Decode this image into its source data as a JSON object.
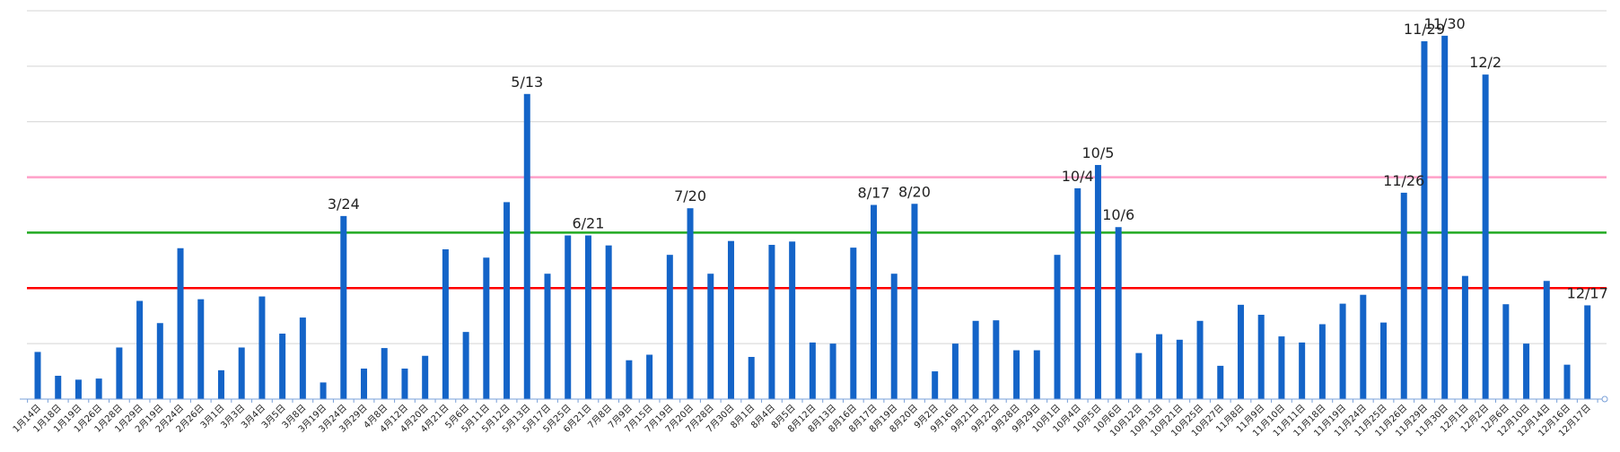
{
  "chart_data": {
    "type": "bar",
    "title": "",
    "xlabel": "",
    "ylabel": "",
    "ylim": [
      0,
      7
    ],
    "grid": true,
    "categories": [
      "1月14日",
      "1月18日",
      "1月19日",
      "1月26日",
      "1月28日",
      "1月29日",
      "2月19日",
      "2月24日",
      "2月26日",
      "3月1日",
      "3月3日",
      "3月4日",
      "3月5日",
      "3月8日",
      "3月19日",
      "3月24日",
      "3月29日",
      "4月8日",
      "4月12日",
      "4月20日",
      "4月21日",
      "5月6日",
      "5月11日",
      "5月12日",
      "5月13日",
      "5月17日",
      "5月25日",
      "6月21日",
      "7月8日",
      "7月9日",
      "7月15日",
      "7月19日",
      "7月20日",
      "7月28日",
      "7月30日",
      "8月1日",
      "8月4日",
      "8月5日",
      "8月12日",
      "8月13日",
      "8月16日",
      "8月17日",
      "8月19日",
      "8月20日",
      "9月2日",
      "9月16日",
      "9月21日",
      "9月22日",
      "9月28日",
      "9月29日",
      "10月1日",
      "10月4日",
      "10月5日",
      "10月6日",
      "10月12日",
      "10月13日",
      "10月21日",
      "10月25日",
      "10月27日",
      "11月8日",
      "11月9日",
      "11月10日",
      "11月11日",
      "11月18日",
      "11月19日",
      "11月24日",
      "11月25日",
      "11月26日",
      "11月29日",
      "11月30日",
      "12月1日",
      "12月2日",
      "12月6日",
      "12月10日",
      "12月14日",
      "12月16日",
      "12月17日"
    ],
    "values": [
      0.85,
      0.42,
      0.35,
      0.37,
      0.93,
      1.77,
      1.37,
      2.72,
      1.8,
      0.52,
      0.93,
      1.85,
      1.18,
      1.47,
      0.3,
      3.3,
      0.55,
      0.92,
      0.55,
      0.78,
      2.7,
      1.21,
      2.55,
      3.55,
      5.5,
      2.26,
      2.95,
      2.95,
      2.77,
      0.7,
      0.8,
      2.6,
      3.44,
      2.26,
      2.85,
      0.76,
      2.78,
      2.84,
      1.02,
      1.0,
      2.73,
      3.5,
      2.26,
      3.52,
      0.5,
      1.0,
      1.41,
      1.42,
      0.88,
      0.88,
      2.6,
      3.8,
      4.22,
      3.1,
      0.83,
      1.17,
      1.07,
      1.41,
      0.6,
      1.7,
      1.52,
      1.13,
      1.02,
      1.35,
      1.72,
      1.88,
      1.38,
      3.72,
      6.45,
      6.55,
      2.22,
      5.85,
      1.71,
      1.0,
      2.13,
      0.62,
      1.69
    ],
    "series": [
      {
        "values": [
          0.85,
          0.42,
          0.35,
          0.37,
          0.93,
          1.77,
          1.37,
          2.72,
          1.8,
          0.52,
          0.93,
          1.85,
          1.18,
          1.47,
          0.3,
          3.3,
          0.55,
          0.92,
          0.55,
          0.78,
          2.7,
          1.21,
          2.55,
          3.55,
          5.5,
          2.26,
          2.95,
          2.95,
          2.77,
          0.7,
          0.8,
          2.6,
          3.44,
          2.26,
          2.85,
          0.76,
          2.78,
          2.84,
          1.02,
          1.0,
          2.73,
          3.5,
          2.26,
          3.52,
          0.5,
          1.0,
          1.41,
          1.42,
          0.88,
          0.88,
          2.6,
          3.8,
          4.22,
          3.1,
          0.83,
          1.17,
          1.07,
          1.41,
          0.6,
          1.7,
          1.52,
          1.13,
          1.02,
          1.35,
          1.72,
          1.88,
          1.38,
          3.72,
          6.45,
          6.55,
          2.22,
          5.85,
          1.71,
          1.0,
          2.13,
          0.62,
          1.69
        ]
      }
    ],
    "annotations": [
      {
        "category_index": 15,
        "text": "3/24"
      },
      {
        "category_index": 24,
        "text": "5/13"
      },
      {
        "category_index": 27,
        "text": "6/21"
      },
      {
        "category_index": 32,
        "text": "7/20"
      },
      {
        "category_index": 41,
        "text": "8/17"
      },
      {
        "category_index": 43,
        "text": "8/20"
      },
      {
        "category_index": 51,
        "text": "10/4"
      },
      {
        "category_index": 52,
        "text": "10/5"
      },
      {
        "category_index": 53,
        "text": "10/6"
      },
      {
        "category_index": 67,
        "text": "11/26"
      },
      {
        "category_index": 68,
        "text": "11/29"
      },
      {
        "category_index": 69,
        "text": "11/30"
      },
      {
        "category_index": 71,
        "text": "12/2"
      },
      {
        "category_index": 76,
        "text": "12/17"
      }
    ],
    "reference_lines": [
      {
        "value": 2.0,
        "color": "#ff0000"
      },
      {
        "value": 3.0,
        "color": "#22aa22"
      },
      {
        "value": 4.0,
        "color": "#ffa0c8"
      }
    ],
    "colors": {
      "bar": "#1464c8",
      "grid": "#d4d4d4",
      "axis": "#7aa0d8"
    }
  }
}
